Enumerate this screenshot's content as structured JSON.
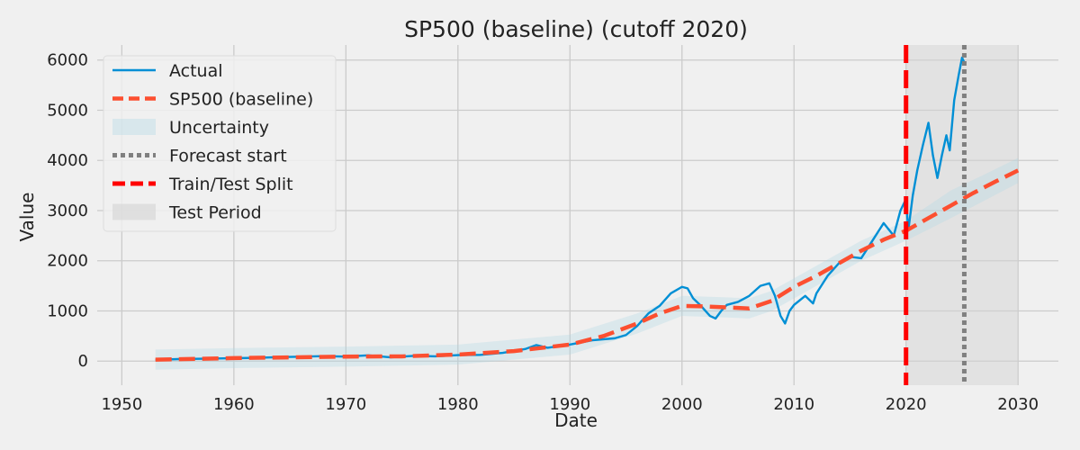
{
  "chart_data": {
    "type": "line",
    "title": "SP500 (baseline) (cutoff 2020)",
    "xlabel": "Date",
    "ylabel": "Value",
    "xlim": [
      1947.8,
      2033.6
    ],
    "ylim": [
      -480,
      6300
    ],
    "x_ticks": [
      1950,
      1960,
      1970,
      1980,
      1990,
      2000,
      2010,
      2020,
      2030
    ],
    "y_ticks": [
      0,
      1000,
      2000,
      3000,
      4000,
      5000,
      6000
    ],
    "grid": true,
    "legend_position": "top-left",
    "legend": [
      "Actual",
      "SP500 (baseline)",
      "Uncertainty",
      "Forecast start",
      "Train/Test Split",
      "Test Period"
    ],
    "colors": {
      "actual": "#008fd5",
      "forecast": "#fc4f30",
      "uncertainty": "#add8e6",
      "forecast_start": "#808080",
      "split": "#ff0000",
      "test_period": "#d3d3d3",
      "background": "#f0f0f0",
      "grid": "#cbcbcb"
    },
    "series": [
      {
        "name": "Actual",
        "style": "solid",
        "points": [
          [
            1953,
            25
          ],
          [
            1955,
            40
          ],
          [
            1958,
            50
          ],
          [
            1960,
            58
          ],
          [
            1962,
            65
          ],
          [
            1964,
            80
          ],
          [
            1966,
            88
          ],
          [
            1968,
            100
          ],
          [
            1970,
            90
          ],
          [
            1972,
            115
          ],
          [
            1974,
            75
          ],
          [
            1976,
            105
          ],
          [
            1978,
            95
          ],
          [
            1980,
            120
          ],
          [
            1982,
            125
          ],
          [
            1984,
            165
          ],
          [
            1986,
            240
          ],
          [
            1987,
            320
          ],
          [
            1988,
            265
          ],
          [
            1990,
            330
          ],
          [
            1992,
            415
          ],
          [
            1994,
            455
          ],
          [
            1995,
            520
          ],
          [
            1996,
            700
          ],
          [
            1997,
            950
          ],
          [
            1998,
            1100
          ],
          [
            1999,
            1350
          ],
          [
            2000,
            1480
          ],
          [
            2000.5,
            1450
          ],
          [
            2001,
            1250
          ],
          [
            2001.7,
            1100
          ],
          [
            2002.5,
            900
          ],
          [
            2003,
            850
          ],
          [
            2003.5,
            1000
          ],
          [
            2004,
            1120
          ],
          [
            2005,
            1180
          ],
          [
            2006,
            1300
          ],
          [
            2007,
            1500
          ],
          [
            2007.8,
            1550
          ],
          [
            2008.3,
            1300
          ],
          [
            2008.8,
            900
          ],
          [
            2009.2,
            750
          ],
          [
            2009.6,
            1000
          ],
          [
            2010,
            1120
          ],
          [
            2011,
            1300
          ],
          [
            2011.7,
            1150
          ],
          [
            2012,
            1350
          ],
          [
            2013,
            1700
          ],
          [
            2014,
            1950
          ],
          [
            2015,
            2080
          ],
          [
            2016,
            2050
          ],
          [
            2017,
            2400
          ],
          [
            2018,
            2750
          ],
          [
            2018.9,
            2500
          ],
          [
            2019.5,
            3000
          ],
          [
            2020,
            3230
          ],
          [
            2020.2,
            2600
          ],
          [
            2020.6,
            3300
          ],
          [
            2021,
            3800
          ],
          [
            2021.5,
            4300
          ],
          [
            2022,
            4750
          ],
          [
            2022.4,
            4100
          ],
          [
            2022.8,
            3650
          ],
          [
            2023.2,
            4100
          ],
          [
            2023.6,
            4500
          ],
          [
            2023.9,
            4200
          ],
          [
            2024.3,
            5200
          ],
          [
            2024.7,
            5700
          ],
          [
            2025,
            6050
          ],
          [
            2025.2,
            5950
          ]
        ]
      },
      {
        "name": "SP500 (baseline)",
        "style": "dashed",
        "points": [
          [
            1953,
            30
          ],
          [
            1960,
            60
          ],
          [
            1970,
            90
          ],
          [
            1975,
            95
          ],
          [
            1980,
            130
          ],
          [
            1985,
            200
          ],
          [
            1990,
            330
          ],
          [
            1993,
            500
          ],
          [
            1996,
            750
          ],
          [
            1998,
            950
          ],
          [
            2000,
            1100
          ],
          [
            2002,
            1090
          ],
          [
            2004,
            1070
          ],
          [
            2006,
            1050
          ],
          [
            2008,
            1200
          ],
          [
            2010,
            1480
          ],
          [
            2012,
            1700
          ],
          [
            2014,
            1950
          ],
          [
            2016,
            2200
          ],
          [
            2018,
            2420
          ],
          [
            2020,
            2600
          ],
          [
            2022,
            2850
          ],
          [
            2024,
            3100
          ],
          [
            2026,
            3350
          ],
          [
            2028,
            3580
          ],
          [
            2030,
            3800
          ]
        ]
      },
      {
        "name": "Uncertainty",
        "type": "band",
        "upper": [
          [
            1953,
            230
          ],
          [
            1960,
            260
          ],
          [
            1970,
            290
          ],
          [
            1980,
            330
          ],
          [
            1990,
            530
          ],
          [
            1996,
            950
          ],
          [
            2000,
            1300
          ],
          [
            2004,
            1270
          ],
          [
            2006,
            1250
          ],
          [
            2008,
            1400
          ],
          [
            2012,
            1900
          ],
          [
            2016,
            2400
          ],
          [
            2020,
            2800
          ],
          [
            2024,
            3400
          ],
          [
            2027,
            3720
          ],
          [
            2030,
            4050
          ]
        ],
        "lower": [
          [
            1953,
            -170
          ],
          [
            1960,
            -140
          ],
          [
            1970,
            -110
          ],
          [
            1980,
            -70
          ],
          [
            1990,
            130
          ],
          [
            1996,
            550
          ],
          [
            2000,
            900
          ],
          [
            2004,
            870
          ],
          [
            2006,
            850
          ],
          [
            2008,
            1000
          ],
          [
            2012,
            1500
          ],
          [
            2016,
            2000
          ],
          [
            2020,
            2400
          ],
          [
            2024,
            2850
          ],
          [
            2027,
            3200
          ],
          [
            2030,
            3550
          ]
        ]
      }
    ],
    "vertical_lines": [
      {
        "name": "Forecast start",
        "x": 2025.2,
        "style": "dotted"
      },
      {
        "name": "Train/Test Split",
        "x": 2020.0,
        "style": "dashed"
      }
    ],
    "test_period": [
      2020.0,
      2030.0
    ]
  }
}
